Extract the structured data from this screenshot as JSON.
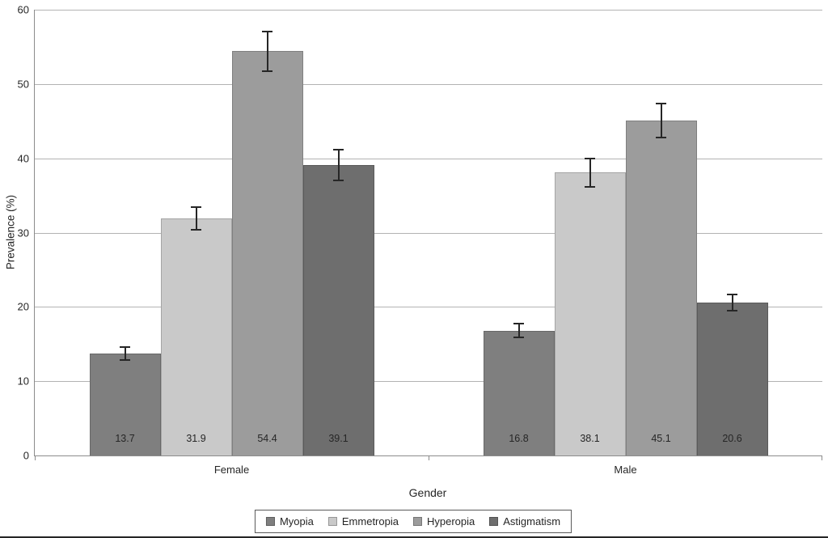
{
  "chart_data": {
    "type": "bar",
    "title": "",
    "xlabel": "Gender",
    "ylabel": "Prevalence (%)",
    "ylim": [
      0,
      60
    ],
    "ytick_step": 10,
    "ytick_labels": [
      "0",
      "10",
      "20",
      "30",
      "40",
      "50",
      "60"
    ],
    "grid": true,
    "legend_position": "bottom-center",
    "error_bars": true,
    "value_labels_shown": true,
    "categories": [
      "Female",
      "Male"
    ],
    "series": [
      {
        "name": "Myopia",
        "color": "#7f7f7f",
        "values": [
          13.7,
          16.8
        ],
        "errors": [
          0.9,
          0.9
        ]
      },
      {
        "name": "Emmetropia",
        "color": "#c9c9c9",
        "values": [
          31.9,
          38.1
        ],
        "errors": [
          1.5,
          1.9
        ]
      },
      {
        "name": "Hyperopia",
        "color": "#9c9c9c",
        "values": [
          54.4,
          45.1
        ],
        "errors": [
          2.7,
          2.3
        ]
      },
      {
        "name": "Astigmatism",
        "color": "#6e6e6e",
        "values": [
          39.1,
          20.6
        ],
        "errors": [
          2.1,
          1.1
        ]
      }
    ],
    "colors": {
      "axis": "#8c8c8c",
      "gridline": "#b3b3b3",
      "error_bar": "#262626",
      "text": "#262626",
      "background": "#ffffff"
    }
  }
}
